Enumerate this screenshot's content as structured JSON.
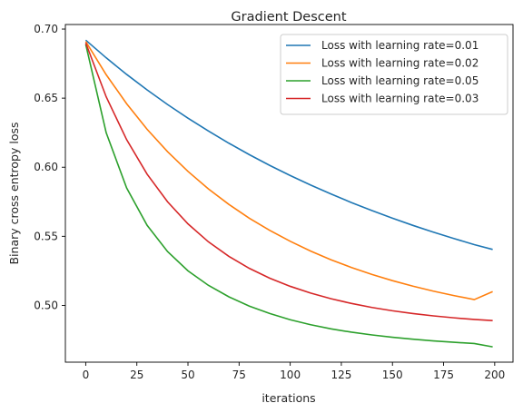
{
  "chart_data": {
    "type": "line",
    "title": "Gradient Descent",
    "xlabel": "iterations",
    "ylabel": "Binary cross entropy loss",
    "xlim": [
      -9.95,
      208.95
    ],
    "ylim": [
      0.4589,
      0.7033
    ],
    "xticks": [
      0,
      25,
      50,
      75,
      100,
      125,
      150,
      175,
      200
    ],
    "yticks": [
      0.5,
      0.55,
      0.6,
      0.65,
      0.7
    ],
    "ytick_labels": [
      "0.50",
      "0.55",
      "0.60",
      "0.65",
      "0.70"
    ],
    "grid": false,
    "legend_position": "top-right",
    "x": [
      0,
      10,
      20,
      30,
      40,
      50,
      60,
      70,
      80,
      90,
      100,
      110,
      120,
      130,
      140,
      150,
      160,
      170,
      180,
      190,
      199
    ],
    "series": [
      {
        "name": "Loss with learning rate=0.01",
        "color": "#1f77b4",
        "values": [
          0.692,
          0.6792,
          0.6672,
          0.656,
          0.6454,
          0.6355,
          0.6262,
          0.6174,
          0.6091,
          0.6013,
          0.594,
          0.5871,
          0.5806,
          0.5744,
          0.5686,
          0.5631,
          0.5579,
          0.553,
          0.5484,
          0.544,
          0.5405
        ]
      },
      {
        "name": "Loss with learning rate=0.02",
        "color": "#ff7f0e",
        "values": [
          0.691,
          0.667,
          0.646,
          0.6275,
          0.6113,
          0.597,
          0.5843,
          0.5731,
          0.5631,
          0.5543,
          0.5464,
          0.5393,
          0.533,
          0.5274,
          0.5224,
          0.5179,
          0.5139,
          0.5103,
          0.5071,
          0.5042,
          0.51
        ]
      },
      {
        "name": "Loss with learning rate=0.05",
        "color": "#2ca02c",
        "values": [
          0.689,
          0.625,
          0.585,
          0.558,
          0.539,
          0.525,
          0.5145,
          0.5062,
          0.4995,
          0.4941,
          0.4896,
          0.486,
          0.483,
          0.4806,
          0.4786,
          0.4769,
          0.4755,
          0.4743,
          0.4733,
          0.4724,
          0.47
        ]
      },
      {
        "name": "Loss with learning rate=0.03",
        "color": "#d62728",
        "values": [
          0.69,
          0.651,
          0.62,
          0.595,
          0.575,
          0.559,
          0.546,
          0.5355,
          0.5268,
          0.5197,
          0.5138,
          0.5089,
          0.5048,
          0.5014,
          0.4985,
          0.4961,
          0.4941,
          0.4924,
          0.491,
          0.4898,
          0.489
        ]
      }
    ]
  }
}
